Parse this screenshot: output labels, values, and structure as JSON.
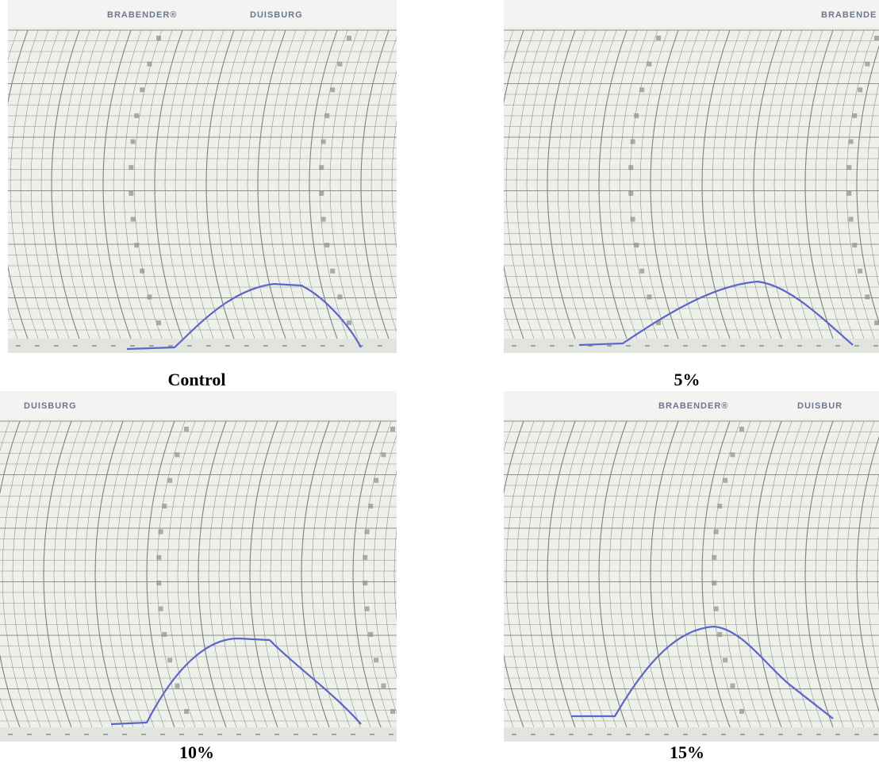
{
  "panels": [
    {
      "caption": "Control",
      "header": [
        "BRABENDER®",
        "DUISBURG"
      ]
    },
    {
      "caption": "5%",
      "header": [
        "BRABENDE"
      ]
    },
    {
      "caption": "10%",
      "header": [
        "DUISBURG"
      ]
    },
    {
      "caption": "15%",
      "header": [
        "BRABENDER®",
        "DUISBUR"
      ]
    }
  ]
}
